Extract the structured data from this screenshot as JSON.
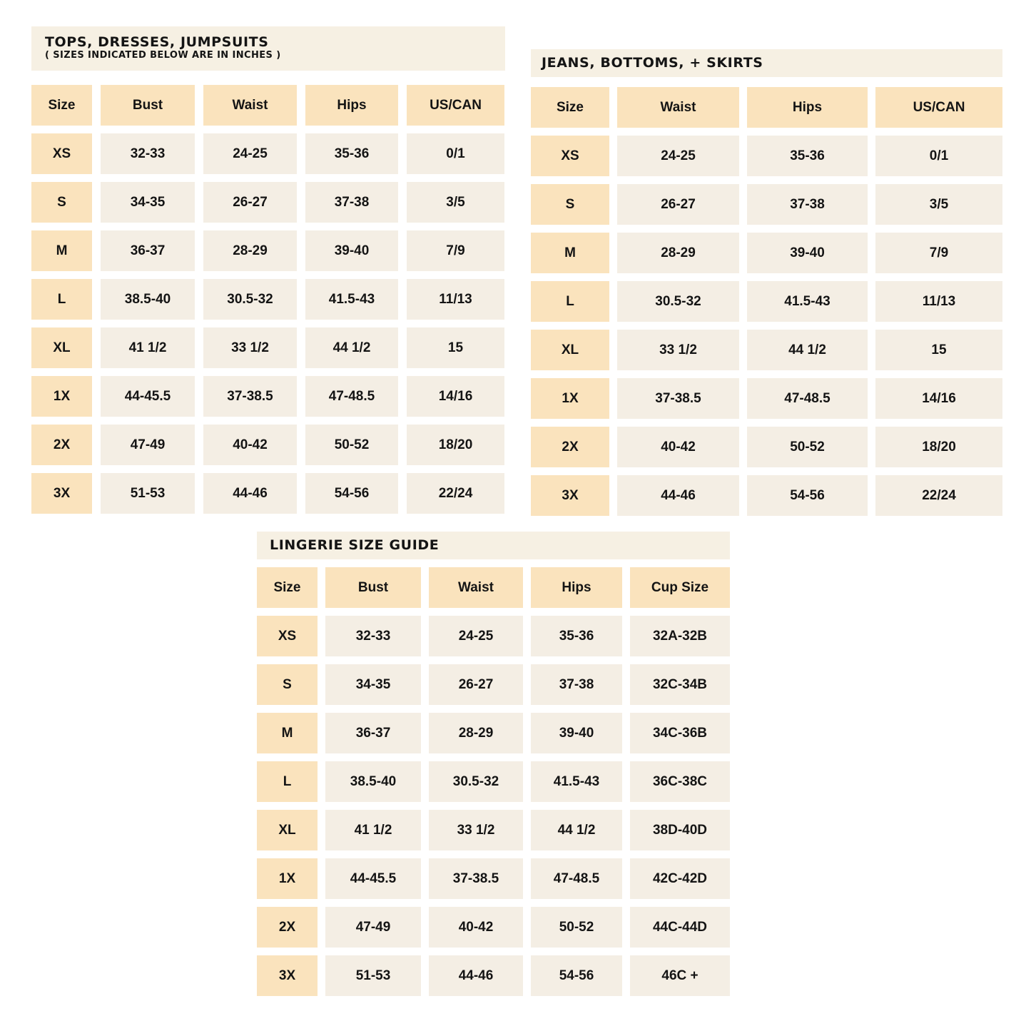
{
  "colors": {
    "background": "#ffffff",
    "header_cell": "#fae3bd",
    "data_cell": "#f4eee4",
    "title_banner": "#f6f0e3",
    "text": "#141414"
  },
  "chart_data": [
    {
      "type": "table",
      "title": "TOPS, DRESSES, JUMPSUITS",
      "subtitle": "( SIZES INDICATED BELOW ARE IN INCHES )",
      "columns": [
        "Size",
        "Bust",
        "Waist",
        "Hips",
        "US/CAN"
      ],
      "rows": [
        [
          "XS",
          "32-33",
          "24-25",
          "35-36",
          "0/1"
        ],
        [
          "S",
          "34-35",
          "26-27",
          "37-38",
          "3/5"
        ],
        [
          "M",
          "36-37",
          "28-29",
          "39-40",
          "7/9"
        ],
        [
          "L",
          "38.5-40",
          "30.5-32",
          "41.5-43",
          "11/13"
        ],
        [
          "XL",
          "41 1/2",
          "33 1/2",
          "44 1/2",
          "15"
        ],
        [
          "1X",
          "44-45.5",
          "37-38.5",
          "47-48.5",
          "14/16"
        ],
        [
          "2X",
          "47-49",
          "40-42",
          "50-52",
          "18/20"
        ],
        [
          "3X",
          "51-53",
          "44-46",
          "54-56",
          "22/24"
        ]
      ]
    },
    {
      "type": "table",
      "title": "JEANS, BOTTOMS, + SKIRTS",
      "subtitle": "",
      "columns": [
        "Size",
        "Waist",
        "Hips",
        "US/CAN"
      ],
      "rows": [
        [
          "XS",
          "24-25",
          "35-36",
          "0/1"
        ],
        [
          "S",
          "26-27",
          "37-38",
          "3/5"
        ],
        [
          "M",
          "28-29",
          "39-40",
          "7/9"
        ],
        [
          "L",
          "30.5-32",
          "41.5-43",
          "11/13"
        ],
        [
          "XL",
          "33 1/2",
          "44 1/2",
          "15"
        ],
        [
          "1X",
          "37-38.5",
          "47-48.5",
          "14/16"
        ],
        [
          "2X",
          "40-42",
          "50-52",
          "18/20"
        ],
        [
          "3X",
          "44-46",
          "54-56",
          "22/24"
        ]
      ]
    },
    {
      "type": "table",
      "title": "LINGERIE SIZE GUIDE",
      "subtitle": "",
      "columns": [
        "Size",
        "Bust",
        "Waist",
        "Hips",
        "Cup Size"
      ],
      "rows": [
        [
          "XS",
          "32-33",
          "24-25",
          "35-36",
          "32A-32B"
        ],
        [
          "S",
          "34-35",
          "26-27",
          "37-38",
          "32C-34B"
        ],
        [
          "M",
          "36-37",
          "28-29",
          "39-40",
          "34C-36B"
        ],
        [
          "L",
          "38.5-40",
          "30.5-32",
          "41.5-43",
          "36C-38C"
        ],
        [
          "XL",
          "41 1/2",
          "33 1/2",
          "44 1/2",
          "38D-40D"
        ],
        [
          "1X",
          "44-45.5",
          "37-38.5",
          "47-48.5",
          "42C-42D"
        ],
        [
          "2X",
          "47-49",
          "40-42",
          "50-52",
          "44C-44D"
        ],
        [
          "3X",
          "51-53",
          "44-46",
          "54-56",
          "46C +"
        ]
      ]
    }
  ]
}
